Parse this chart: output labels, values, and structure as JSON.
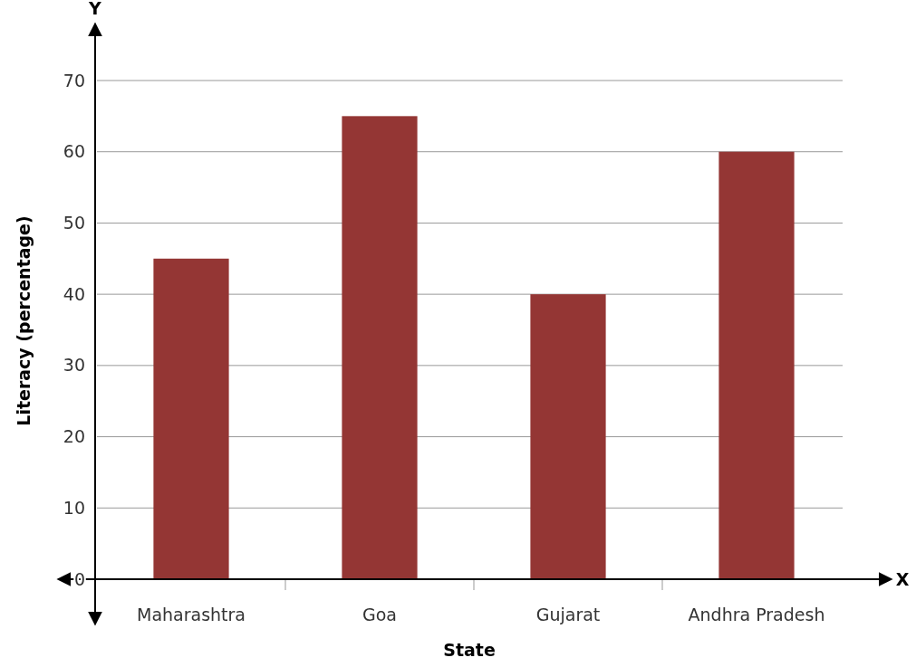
{
  "chart_data": {
    "type": "bar",
    "xlabel": "State",
    "ylabel": "Literacy (percentage)",
    "categories": [
      "Maharashtra",
      "Goa",
      "Gujarat",
      "Andhra Pradesh"
    ],
    "values": [
      45,
      65,
      40,
      60
    ],
    "color": "#943634",
    "ylim": [
      0,
      78
    ],
    "yticks": [
      0,
      10,
      20,
      30,
      40,
      50,
      60,
      70
    ],
    "grid": "y",
    "annotations": [
      "Y",
      "X"
    ]
  }
}
